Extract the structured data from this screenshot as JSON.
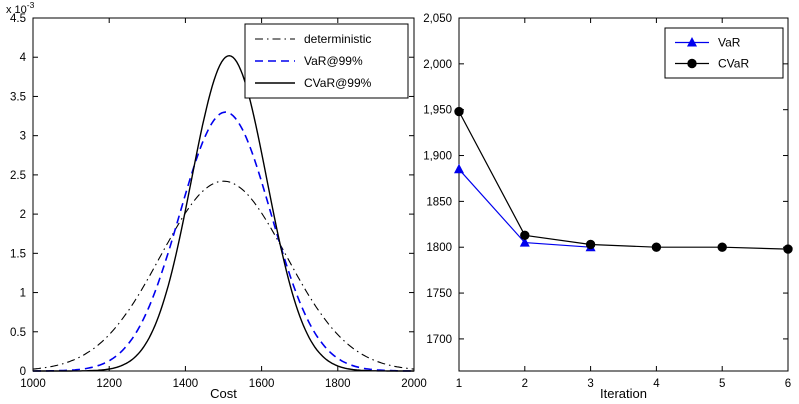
{
  "figure": {
    "background": "#ffffff",
    "axis_color": "#000000",
    "text_color": "#000000"
  },
  "chart_data": [
    {
      "id": "left",
      "type": "line",
      "title": "",
      "xlabel": "Cost",
      "ylabel": "",
      "exponent_label": {
        "prefix": "x 10",
        "exp": "-3"
      },
      "xlim": [
        1000,
        2000
      ],
      "ylim": [
        0,
        4.5
      ],
      "xticks": [
        1000,
        1200,
        1400,
        1600,
        1800,
        2000
      ],
      "xtick_labels": [
        "1000",
        "1200",
        "1400",
        "1600",
        "1800",
        "2000"
      ],
      "yticks": [
        0,
        0.5,
        1,
        1.5,
        2,
        2.5,
        3,
        3.5,
        4,
        4.5
      ],
      "ytick_labels": [
        "0",
        "0.5",
        "1",
        "1.5",
        "2",
        "2.5",
        "3",
        "3.5",
        "4",
        "4.5"
      ],
      "grid": false,
      "legend_position": "top-right",
      "legend_entries": [
        "deterministic",
        "VaR@99%",
        "CVaR@99%"
      ],
      "series": [
        {
          "name": "deterministic",
          "color": "#000000",
          "line": "dashdot",
          "width": 1.1,
          "gaussian": {
            "mean": 1500,
            "sigma": 165,
            "peak": 2.42
          }
        },
        {
          "name": "VaR@99%",
          "color": "#0000ee",
          "line": "dashed",
          "width": 1.6,
          "gaussian": {
            "mean": 1505,
            "sigma": 120,
            "peak": 3.3
          }
        },
        {
          "name": "CVaR@99%",
          "color": "#000000",
          "line": "solid",
          "width": 1.4,
          "gaussian": {
            "mean": 1515,
            "sigma": 99,
            "peak": 4.02
          }
        }
      ]
    },
    {
      "id": "right",
      "type": "line",
      "title": "",
      "xlabel": "Iteration",
      "ylabel": "",
      "xlim": [
        1,
        6
      ],
      "ylim": [
        1665,
        2050
      ],
      "xticks": [
        1,
        2,
        3,
        4,
        5,
        6
      ],
      "xtick_labels": [
        "1",
        "2",
        "3",
        "4",
        "5",
        "6"
      ],
      "yticks": [
        1700,
        1750,
        1800,
        1850,
        1900,
        1950,
        2000,
        2050
      ],
      "ytick_labels": [
        "1700",
        "1750",
        "1800",
        "1850",
        "1,900",
        "1,950",
        "2,000",
        "2,050"
      ],
      "grid": false,
      "legend_position": "top-right",
      "legend_entries": [
        "VaR",
        "CVaR"
      ],
      "series": [
        {
          "name": "VaR",
          "color": "#0000ee",
          "line": "solid",
          "width": 1.2,
          "marker": "triangle",
          "points": [
            [
              1,
              1885
            ],
            [
              2,
              1805
            ],
            [
              3,
              1800
            ]
          ]
        },
        {
          "name": "CVaR",
          "color": "#000000",
          "line": "solid",
          "width": 1.2,
          "marker": "circle",
          "points": [
            [
              1,
              1948
            ],
            [
              2,
              1813
            ],
            [
              3,
              1803
            ],
            [
              4,
              1800
            ],
            [
              5,
              1800
            ],
            [
              6,
              1798
            ]
          ]
        }
      ]
    }
  ]
}
